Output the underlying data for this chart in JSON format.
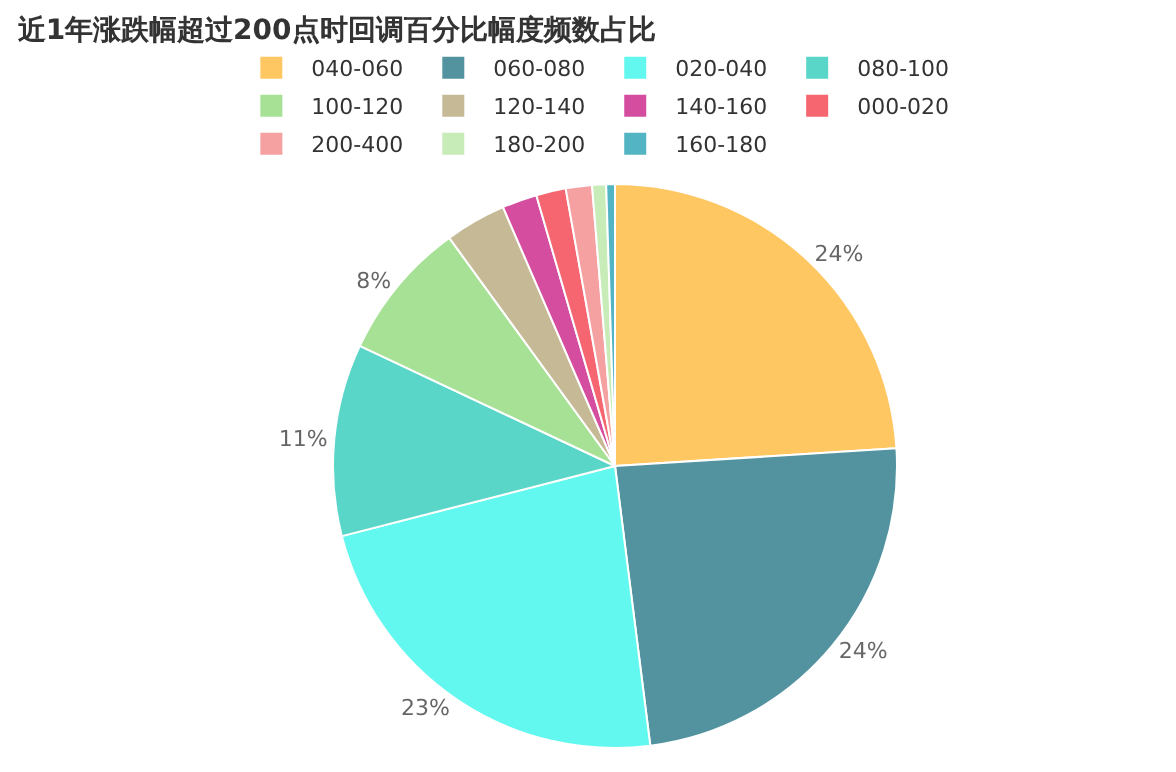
{
  "chart_data": {
    "type": "pie",
    "title": "近1年涨跌幅超过200点时回调百分比幅度频数占比",
    "categories": [
      "040-060",
      "060-080",
      "020-040",
      "080-100",
      "100-120",
      "120-140",
      "140-160",
      "000-020",
      "200-400",
      "180-200",
      "160-180"
    ],
    "values": [
      24,
      24,
      23,
      11,
      8,
      3.5,
      2,
      1.7,
      1.5,
      0.8,
      0.5
    ],
    "value_labels": [
      "24%",
      "24%",
      "23%",
      "11%",
      "8%",
      null,
      null,
      null,
      null,
      null,
      null
    ],
    "colors": [
      "#ffb52e",
      "#1a6f80",
      "#2ef5ea",
      "#22c9b6",
      "#8ad873",
      "#b3a374",
      "#c8127f",
      "#f23342",
      "#f28283",
      "#b5e6a0",
      "#1a9bb0"
    ],
    "legend": "top"
  }
}
